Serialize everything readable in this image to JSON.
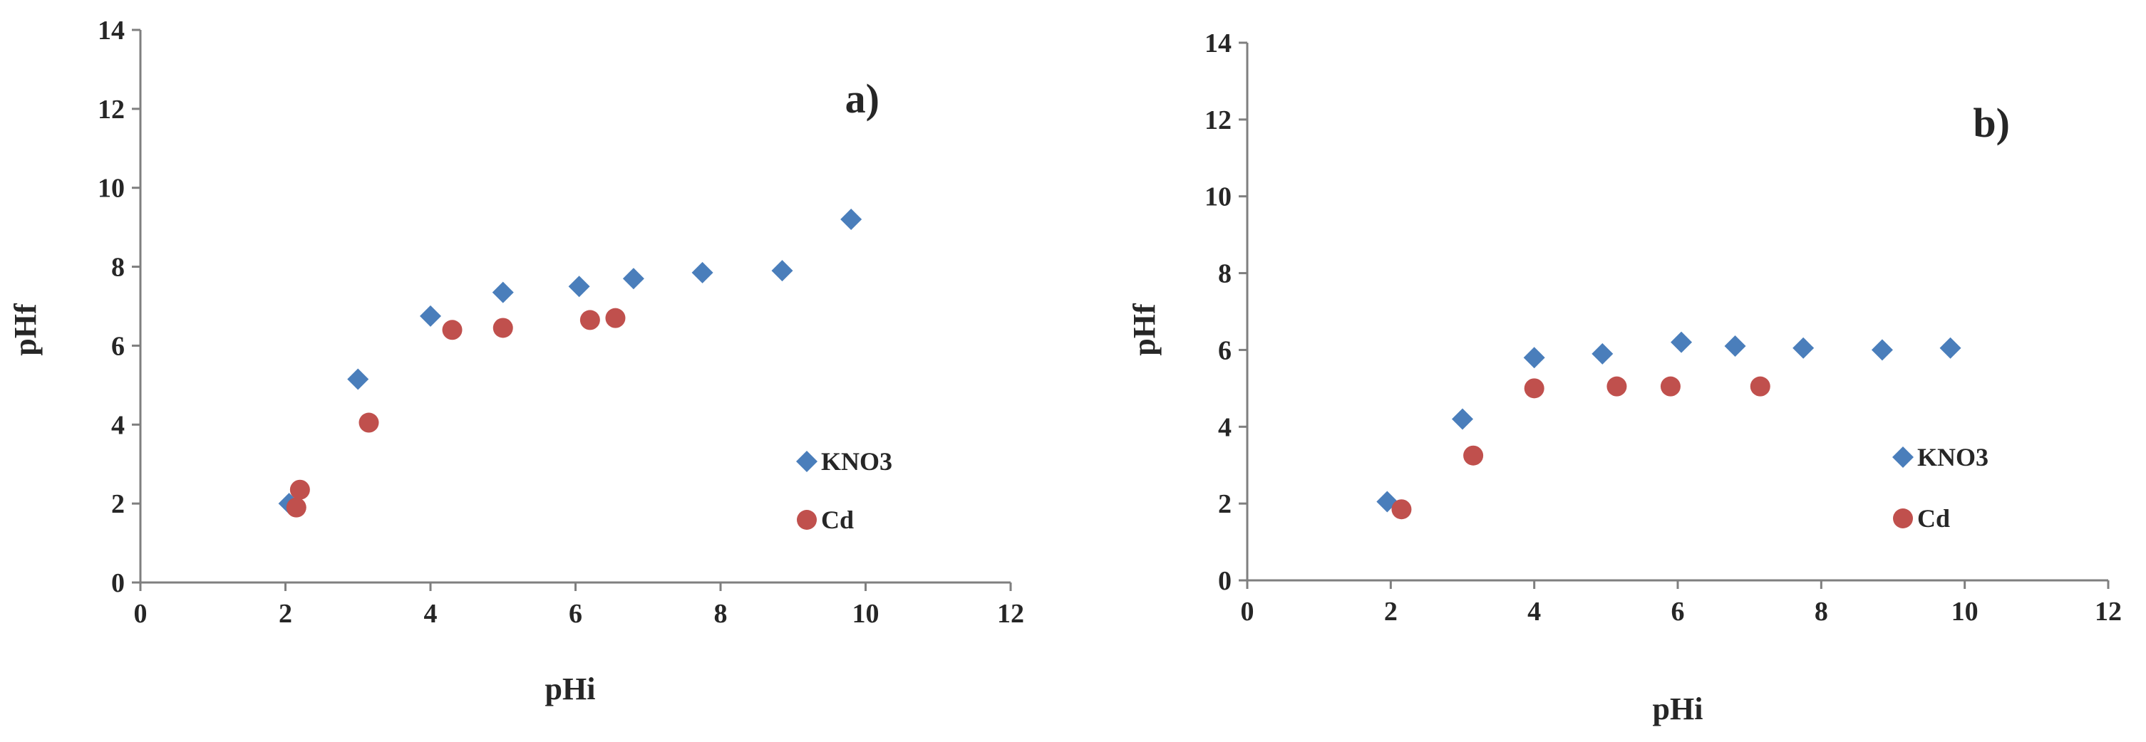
{
  "colors": {
    "KNO3": "#4a7ebb",
    "Cd": "#c0504d",
    "axis": "#7f7f7f",
    "text": "#262626"
  },
  "chart_data": [
    {
      "type": "scatter",
      "title": "",
      "panel_label": "a)",
      "xlabel": "pHi",
      "ylabel": "pHf",
      "xlim": [
        0,
        12
      ],
      "ylim": [
        0,
        14
      ],
      "x_ticks": [
        0,
        2,
        4,
        6,
        8,
        10,
        12
      ],
      "y_ticks": [
        0,
        2,
        4,
        6,
        8,
        10,
        12,
        14
      ],
      "grid": false,
      "legend_position": "bottom-right",
      "series": [
        {
          "name": "KNO3",
          "marker": "diamond",
          "points": [
            [
              2.05,
              2.0
            ],
            [
              3.0,
              5.15
            ],
            [
              4.0,
              6.75
            ],
            [
              5.0,
              7.35
            ],
            [
              6.05,
              7.5
            ],
            [
              6.8,
              7.7
            ],
            [
              7.75,
              7.85
            ],
            [
              8.85,
              7.9
            ],
            [
              9.8,
              9.2
            ]
          ]
        },
        {
          "name": "Cd",
          "marker": "circle",
          "points": [
            [
              2.15,
              1.9
            ],
            [
              2.2,
              2.35
            ],
            [
              3.15,
              4.05
            ],
            [
              4.3,
              6.4
            ],
            [
              5.0,
              6.45
            ],
            [
              6.2,
              6.65
            ],
            [
              6.55,
              6.7
            ]
          ]
        }
      ]
    },
    {
      "type": "scatter",
      "title": "",
      "panel_label": "b)",
      "xlabel": "pHi",
      "ylabel": "pHf",
      "xlim": [
        0,
        12
      ],
      "ylim": [
        0,
        14
      ],
      "x_ticks": [
        0,
        2,
        4,
        6,
        8,
        10,
        12
      ],
      "y_ticks": [
        0,
        2,
        4,
        6,
        8,
        10,
        12,
        14
      ],
      "grid": false,
      "legend_position": "bottom-right",
      "series": [
        {
          "name": "KNO3",
          "marker": "diamond",
          "points": [
            [
              1.95,
              2.05
            ],
            [
              3.0,
              4.2
            ],
            [
              4.0,
              5.8
            ],
            [
              4.95,
              5.9
            ],
            [
              6.05,
              6.2
            ],
            [
              6.8,
              6.1
            ],
            [
              7.75,
              6.05
            ],
            [
              8.85,
              6.0
            ],
            [
              9.8,
              6.05
            ]
          ]
        },
        {
          "name": "Cd",
          "marker": "circle",
          "points": [
            [
              2.15,
              1.85
            ],
            [
              3.15,
              3.25
            ],
            [
              4.0,
              5.0
            ],
            [
              5.15,
              5.05
            ],
            [
              5.9,
              5.05
            ],
            [
              7.15,
              5.05
            ]
          ]
        }
      ]
    }
  ]
}
